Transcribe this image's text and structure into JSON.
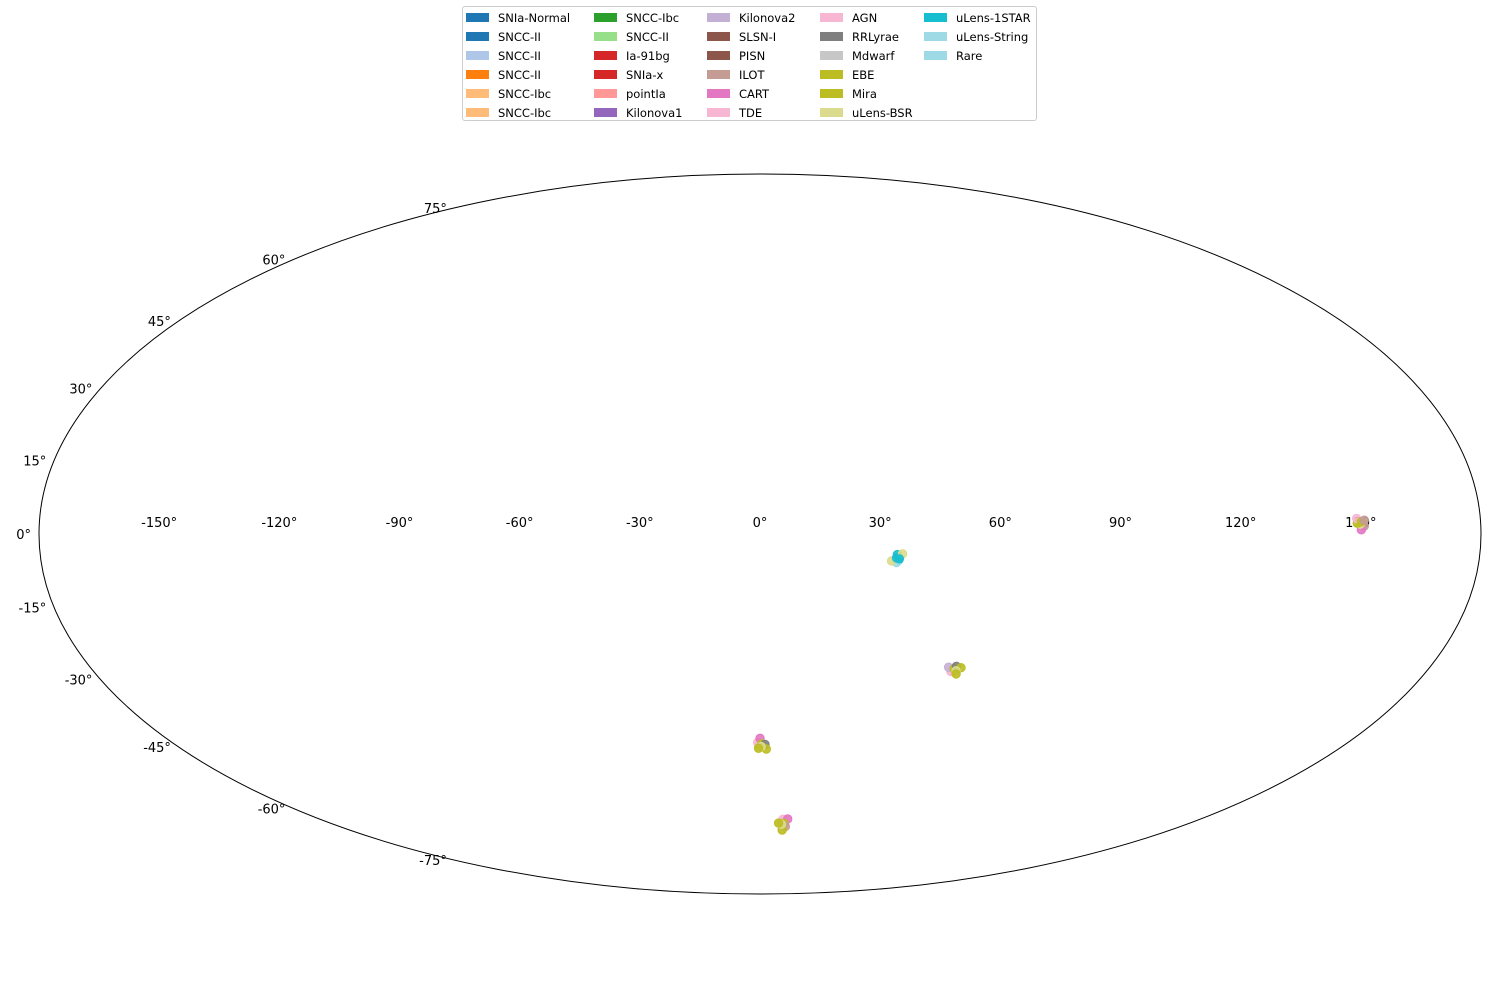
{
  "chart_data": {
    "type": "scatter",
    "projection": "mollweide",
    "title": "",
    "xlabel": "",
    "ylabel": "",
    "xlim": [
      -180,
      180
    ],
    "ylim": [
      -90,
      90
    ],
    "grid": false,
    "legend_placement": "top-center",
    "x_ticks": [
      -150,
      -120,
      -90,
      -60,
      -30,
      0,
      30,
      60,
      90,
      120,
      150
    ],
    "y_ticks": [
      75,
      60,
      45,
      30,
      15,
      0,
      -15,
      -30,
      -45,
      -60,
      -75
    ],
    "x_tick_labels": [
      "-150°",
      "-120°",
      "-90°",
      "-60°",
      "-30°",
      "0°",
      "30°",
      "60°",
      "90°",
      "120°",
      "150°"
    ],
    "y_tick_labels": [
      "75°",
      "60°",
      "45°",
      "30°",
      "15°",
      "0°",
      "-15°",
      "-30°",
      "-45°",
      "-60°",
      "-75°"
    ],
    "legend": [
      {
        "name": "SNIa-Normal",
        "color": "#1f77b4"
      },
      {
        "name": "SNCC-II",
        "color": "#1f77b4"
      },
      {
        "name": "SNCC-II",
        "color": "#aec7e8"
      },
      {
        "name": "SNCC-II",
        "color": "#ff7f0e"
      },
      {
        "name": "SNCC-Ibc",
        "color": "#ffbb78"
      },
      {
        "name": "SNCC-Ibc",
        "color": "#ffbb78"
      },
      {
        "name": "SNCC-Ibc",
        "color": "#2ca02c"
      },
      {
        "name": "SNCC-II",
        "color": "#98df8a"
      },
      {
        "name": "Ia-91bg",
        "color": "#d62728"
      },
      {
        "name": "SNIa-x",
        "color": "#d62728"
      },
      {
        "name": "pointIa",
        "color": "#ff9896"
      },
      {
        "name": "Kilonova1",
        "color": "#9467bd"
      },
      {
        "name": "Kilonova2",
        "color": "#c5b0d5"
      },
      {
        "name": "SLSN-I",
        "color": "#8c564b"
      },
      {
        "name": "PISN",
        "color": "#8c564b"
      },
      {
        "name": "ILOT",
        "color": "#c49c94"
      },
      {
        "name": "CART",
        "color": "#e377c2"
      },
      {
        "name": "TDE",
        "color": "#f7b6d2"
      },
      {
        "name": "AGN",
        "color": "#f7b6d2"
      },
      {
        "name": "RRLyrae",
        "color": "#7f7f7f"
      },
      {
        "name": "Mdwarf",
        "color": "#c7c7c7"
      },
      {
        "name": "EBE",
        "color": "#bcbd22"
      },
      {
        "name": "Mira",
        "color": "#bcbd22"
      },
      {
        "name": "uLens-BSR",
        "color": "#dbdb8d"
      },
      {
        "name": "uLens-1STAR",
        "color": "#17becf"
      },
      {
        "name": "uLens-String",
        "color": "#9edae5"
      },
      {
        "name": "Rare",
        "color": "#9edae5"
      }
    ],
    "clusters": [
      {
        "ra": 150.2,
        "dec": 2.2,
        "colors": [
          "#bcbd22",
          "#c49c94",
          "#e377c2",
          "#dbdb8d",
          "#bcbd22",
          "#f7b6d2",
          "#bcbd22",
          "#c49c94"
        ]
      },
      {
        "ra": 34.5,
        "dec": -5.0,
        "colors": [
          "#17becf",
          "#9edae5",
          "#dbdb8d",
          "#17becf",
          "#17becf",
          "#dbdb8d",
          "#17becf"
        ]
      },
      {
        "ra": 52.5,
        "dec": -28.0,
        "colors": [
          "#bcbd22",
          "#f7b6d2",
          "#c5b0d5",
          "#bcbd22",
          "#7f7f7f",
          "#bcbd22",
          "#dbdb8d",
          "#bcbd22"
        ]
      },
      {
        "ra": 0.3,
        "dec": -44.5,
        "colors": [
          "#bcbd22",
          "#f7b6d2",
          "#e377c2",
          "#bcbd22",
          "#7f7f7f",
          "#bcbd22",
          "#dbdb8d",
          "#bcbd22"
        ]
      },
      {
        "ra": 9.5,
        "dec": -64.0,
        "colors": [
          "#bcbd22",
          "#f7b6d2",
          "#e377c2",
          "#bcbd22",
          "#c49c94",
          "#bcbd22",
          "#dbdb8d",
          "#bcbd22"
        ]
      }
    ]
  }
}
